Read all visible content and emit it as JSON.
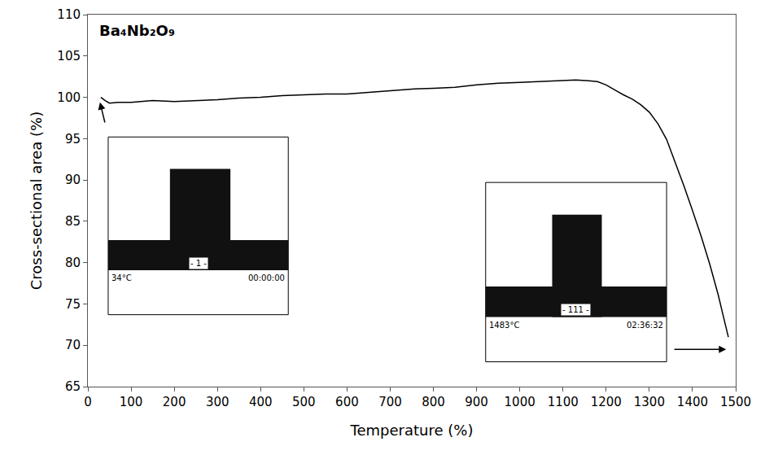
{
  "chart_data": {
    "type": "line",
    "title": "Ba₄Nb₂O₉",
    "x_label": "Temperature (%)",
    "y_label": "Cross-sectional area (%)",
    "color": "#000000",
    "grid": false,
    "x": [
      30,
      40,
      50,
      70,
      100,
      150,
      200,
      250,
      300,
      350,
      400,
      450,
      500,
      550,
      600,
      650,
      700,
      750,
      800,
      850,
      900,
      950,
      1000,
      1050,
      1100,
      1130,
      1160,
      1180,
      1200,
      1220,
      1240,
      1260,
      1280,
      1300,
      1320,
      1340,
      1360,
      1380,
      1400,
      1420,
      1440,
      1460,
      1470,
      1483
    ],
    "values": [
      100.0,
      99.6,
      99.3,
      99.4,
      99.4,
      99.6,
      99.5,
      99.6,
      99.7,
      99.9,
      100.0,
      100.2,
      100.3,
      100.4,
      100.4,
      100.6,
      100.8,
      101.0,
      101.1,
      101.2,
      101.5,
      101.7,
      101.8,
      101.9,
      102.0,
      102.1,
      102.0,
      101.9,
      101.5,
      100.9,
      100.3,
      99.8,
      99.1,
      98.2,
      96.8,
      94.9,
      92.2,
      89.3,
      86.3,
      83.2,
      79.8,
      76.0,
      73.8,
      71.0
    ],
    "xlim": [
      0,
      1500
    ],
    "xticks": [
      0,
      100,
      200,
      300,
      400,
      500,
      600,
      700,
      800,
      900,
      1000,
      1100,
      1200,
      1300,
      1400,
      1500
    ],
    "ylim": [
      65,
      110
    ],
    "yticks": [
      65,
      70,
      75,
      80,
      85,
      90,
      95,
      100,
      105,
      110
    ],
    "insets": [
      {
        "frame": "- 1 -",
        "temperature": "34°C",
        "time": "00:00:00"
      },
      {
        "frame": "- 111 -",
        "temperature": "1483°C",
        "time": "02:36:32"
      }
    ]
  }
}
